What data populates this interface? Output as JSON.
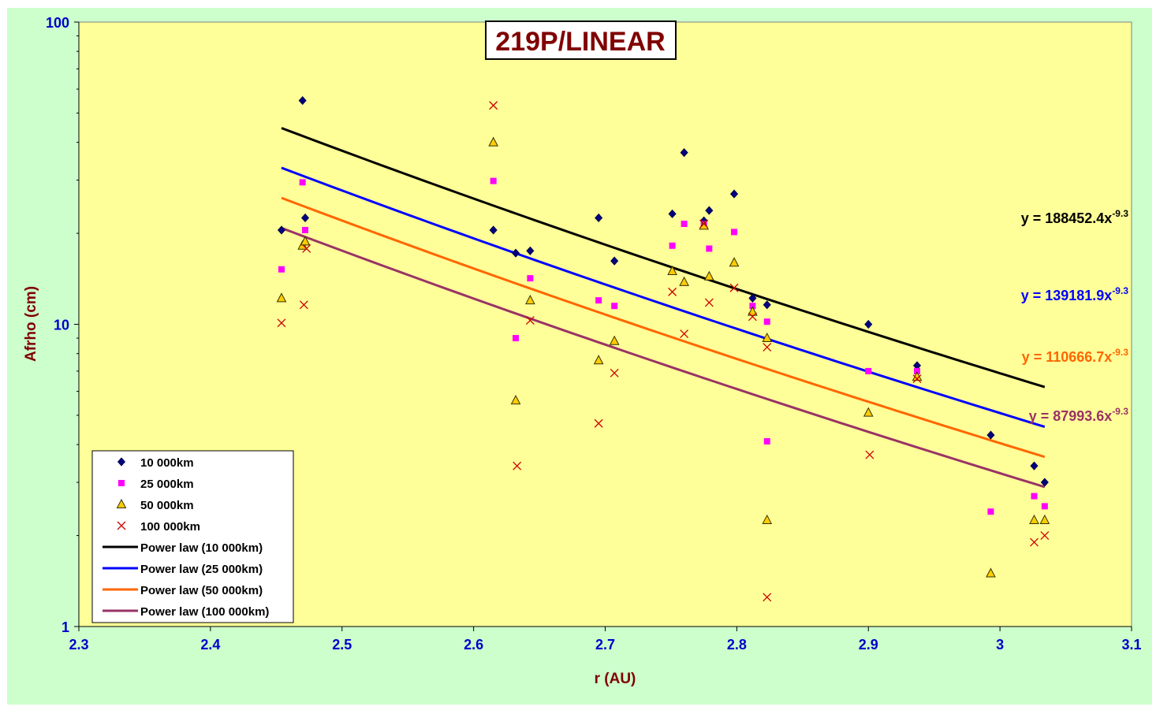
{
  "chart_data": {
    "type": "scatter",
    "title": "219P/LINEAR",
    "xlabel": "r (AU)",
    "ylabel": "Afrho (cm)",
    "x_range": [
      2.3,
      3.1
    ],
    "y_range": [
      1,
      100
    ],
    "y_scale": "log",
    "x_ticks": [
      "2.3",
      "2.4",
      "2.5",
      "2.6",
      "2.7",
      "2.8",
      "2.9",
      "3",
      "3.1"
    ],
    "y_ticks": [
      "1",
      "10",
      "100"
    ],
    "grid": false,
    "legend_position": "bottom-left",
    "colors": {
      "outer_background": "#ccffcc",
      "plot_background": "#ffff99",
      "title_color": "#800000",
      "axis_label_color": "#800000",
      "tick_label_color": "#0000cc"
    },
    "series": [
      {
        "name": "10 000km",
        "marker": "diamond",
        "color": "#000080",
        "x": [
          2.454,
          2.47,
          2.472,
          2.615,
          2.632,
          2.643,
          2.695,
          2.707,
          2.751,
          2.76,
          2.775,
          2.779,
          2.798,
          2.812,
          2.823,
          2.9,
          2.937,
          2.993,
          3.026,
          3.034
        ],
        "y": [
          20.5,
          55.0,
          22.5,
          20.5,
          17.2,
          17.5,
          22.5,
          16.2,
          23.2,
          37.0,
          22.0,
          23.8,
          27.0,
          12.2,
          11.6,
          10.0,
          7.3,
          4.3,
          3.4,
          3.0
        ]
      },
      {
        "name": "25 000km",
        "marker": "square",
        "color": "#ff00ff",
        "x": [
          2.454,
          2.47,
          2.472,
          2.615,
          2.632,
          2.643,
          2.695,
          2.707,
          2.751,
          2.76,
          2.775,
          2.779,
          2.798,
          2.812,
          2.823,
          2.823,
          2.9,
          2.937,
          2.993,
          3.026,
          3.034
        ],
        "y": [
          15.2,
          29.5,
          20.5,
          29.8,
          9.0,
          14.2,
          12.0,
          11.5,
          18.2,
          21.5,
          21.5,
          17.8,
          20.2,
          11.5,
          10.2,
          4.1,
          7.0,
          7.0,
          2.4,
          2.7,
          2.5
        ]
      },
      {
        "name": "50 000km",
        "marker": "triangle",
        "color": "#ff9900",
        "x": [
          2.454,
          2.47,
          2.472,
          2.615,
          2.632,
          2.643,
          2.695,
          2.707,
          2.751,
          2.76,
          2.775,
          2.779,
          2.798,
          2.812,
          2.823,
          2.823,
          2.9,
          2.937,
          2.993,
          3.026,
          3.034
        ],
        "y": [
          12.2,
          18.2,
          18.8,
          40.0,
          5.6,
          12.0,
          7.6,
          8.8,
          15.0,
          13.8,
          21.2,
          14.4,
          16.0,
          11.0,
          9.0,
          2.25,
          5.1,
          6.7,
          1.5,
          2.25,
          2.25
        ]
      },
      {
        "name": "100 000km",
        "marker": "x",
        "color": "#cc0000",
        "x": [
          2.454,
          2.471,
          2.473,
          2.615,
          2.633,
          2.643,
          2.695,
          2.707,
          2.751,
          2.76,
          2.775,
          2.779,
          2.798,
          2.812,
          2.823,
          2.823,
          2.901,
          2.937,
          3.026,
          3.034
        ],
        "y": [
          10.1,
          11.6,
          17.8,
          53.0,
          3.4,
          10.3,
          4.7,
          6.9,
          12.8,
          9.3,
          21.5,
          11.8,
          13.2,
          10.6,
          8.4,
          1.25,
          3.7,
          6.6,
          1.9,
          2.0
        ]
      }
    ],
    "fits": [
      {
        "name": "Power law (10 000km)",
        "coef": 188452.4,
        "exp": -9.3,
        "color": "#000000",
        "x_start": 2.454,
        "x_end": 3.034,
        "equation_prefix": "y = 188452.4x",
        "equation_exp": "-9.3"
      },
      {
        "name": "Power law (25 000km)",
        "coef": 139181.9,
        "exp": -9.3,
        "color": "#0000ff",
        "x_start": 2.454,
        "x_end": 3.034,
        "equation_prefix": "y = 139181.9x",
        "equation_exp": "-9.3"
      },
      {
        "name": "Power law (50 000km)",
        "coef": 110666.7,
        "exp": -9.3,
        "color": "#ff6600",
        "x_start": 2.454,
        "x_end": 3.034,
        "equation_prefix": "y = 110666.7x",
        "equation_exp": "-9.3"
      },
      {
        "name": "Power law (100 000km)",
        "coef": 87993.6,
        "exp": -9.3,
        "color": "#993366",
        "x_start": 2.454,
        "x_end": 3.034,
        "equation_prefix": "y = 87993.6x",
        "equation_exp": "-9.3"
      }
    ]
  }
}
